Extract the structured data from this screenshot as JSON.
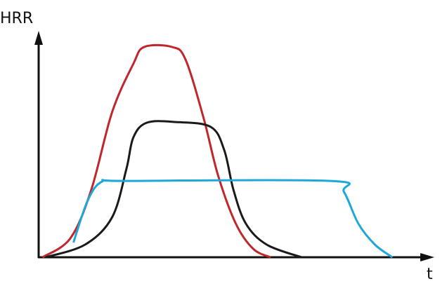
{
  "chart_data": {
    "type": "line",
    "y_label": "HRR",
    "x_label": "t",
    "xlim": [
      0,
      100
    ],
    "ylim": [
      0,
      105
    ],
    "series": [
      {
        "color": "#c0272d",
        "x": [
          1,
          8.2,
          13.6,
          19,
          24.5,
          27.3,
          34.5,
          38,
          42.7,
          46.4,
          51,
          55.5,
          60
        ],
        "values": [
          0,
          9,
          32,
          69,
          92,
          100,
          100,
          94,
          66,
          39,
          16,
          4,
          0
        ]
      },
      {
        "color": "#1a1a1a",
        "x": [
          1.8,
          12,
          19,
          22.7,
          24.5,
          28,
          35.5,
          44.5,
          48,
          50.4,
          53.6,
          59,
          68
        ],
        "values": [
          0,
          6,
          19,
          42,
          57,
          64,
          64.3,
          62,
          51,
          32,
          16,
          6,
          0
        ]
      },
      {
        "color": "#1ea8d8",
        "x": [
          9,
          12.7,
          16.4,
          22.7,
          75.5,
          79,
          82.7,
          87,
          91.5
        ],
        "values": [
          7,
          27,
          36,
          36.3,
          36.3,
          31,
          16,
          6,
          0
        ]
      }
    ]
  }
}
